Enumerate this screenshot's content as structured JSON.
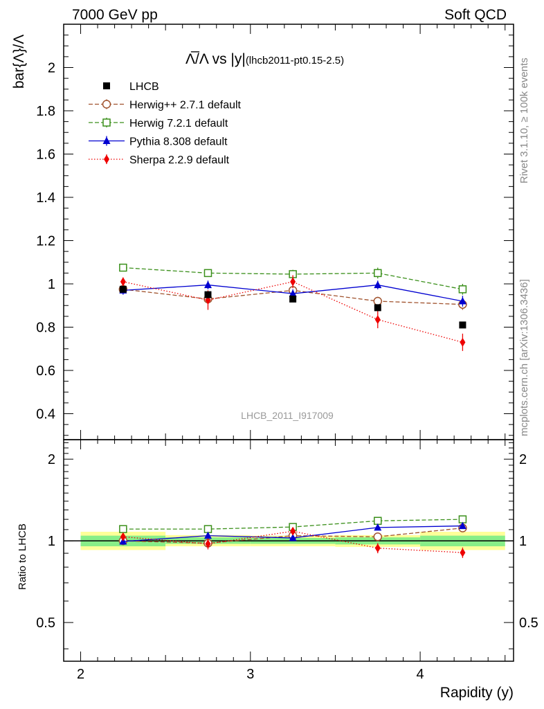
{
  "header": {
    "left": "7000 GeV pp",
    "right": "Soft QCD"
  },
  "side_labels": {
    "rivet": "Rivet 3.1.10, ≥ 100k events",
    "mcplots": "mcplots.cern.ch [arXiv:1306.3436]"
  },
  "watermark": "LHCB_2011_I917009",
  "chart_data": [
    {
      "type": "line",
      "title_symbol": "Λ̅/Λ vs |y|",
      "title_suffix": "(lhcb2011-pt0.15-2.5)",
      "ylabel": "bar{Λ}/Λ",
      "xlabel": "",
      "xlim": [
        1.9,
        4.55
      ],
      "ylim": [
        0.28,
        2.2
      ],
      "yticks": [
        0.4,
        0.6,
        0.8,
        1.0,
        1.2,
        1.4,
        1.6,
        1.8,
        2.0
      ],
      "ytick_labels": [
        "0.4",
        "0.6",
        "0.8",
        "1",
        "1.2",
        "1.4",
        "1.6",
        "1.8",
        "2"
      ],
      "legend_position": "top-left",
      "x": [
        2.25,
        2.75,
        3.25,
        3.75,
        4.25
      ],
      "series": [
        {
          "name": "LHCB",
          "style": "data",
          "color": "#000000",
          "values": [
            0.975,
            0.95,
            0.93,
            0.89,
            0.81
          ],
          "errors": [
            0.005,
            0.005,
            0.005,
            0.005,
            0.005
          ]
        },
        {
          "name": "Herwig++ 2.7.1 default",
          "style": "open-circle",
          "color": "#a0522d",
          "dash": "6,3",
          "values": [
            0.975,
            0.93,
            0.97,
            0.92,
            0.905
          ],
          "errors": [
            0.02,
            0.02,
            0.02,
            0.02,
            0.025
          ]
        },
        {
          "name": "Herwig 7.2.1 default",
          "style": "open-square",
          "color": "#3a8f1a",
          "dash": "6,3",
          "values": [
            1.075,
            1.05,
            1.045,
            1.05,
            0.975
          ],
          "errors": [
            0.015,
            0.015,
            0.02,
            0.025,
            0.025
          ]
        },
        {
          "name": "Pythia 8.308 default",
          "style": "filled-triangle",
          "color": "#0000d0",
          "dash": "",
          "values": [
            0.97,
            0.995,
            0.955,
            0.995,
            0.92
          ],
          "errors": [
            0.02,
            0.02,
            0.02,
            0.02,
            0.025
          ]
        },
        {
          "name": "Sherpa 2.2.9 default",
          "style": "filled-diamond",
          "color": "#ee0000",
          "dash": "1.5,2.5",
          "values": [
            1.01,
            0.925,
            1.01,
            0.835,
            0.73
          ],
          "errors": [
            0.02,
            0.045,
            0.03,
            0.04,
            0.04
          ]
        }
      ]
    },
    {
      "type": "line",
      "title": "",
      "ylabel": "Ratio to LHCB",
      "xlabel": "Rapidity (y)",
      "xlim": [
        1.9,
        4.55
      ],
      "ylim": [
        0.36,
        2.36
      ],
      "log_scale_y": true,
      "yticks": [
        0.5,
        1,
        2
      ],
      "ytick_labels": [
        "0.5",
        "1",
        "2"
      ],
      "xticks": [
        2,
        3,
        4
      ],
      "xtick_labels": [
        "2",
        "3",
        "4"
      ],
      "x": [
        2.25,
        2.75,
        3.25,
        3.75,
        4.25
      ],
      "bands": {
        "bins": [
          [
            2.0,
            2.5
          ],
          [
            2.5,
            3.0
          ],
          [
            3.0,
            3.5
          ],
          [
            3.5,
            4.0
          ],
          [
            4.0,
            4.5
          ]
        ],
        "yellow": [
          [
            0.925,
            1.08
          ],
          [
            0.955,
            1.05
          ],
          [
            0.955,
            1.045
          ],
          [
            0.95,
            1.05
          ],
          [
            0.925,
            1.08
          ]
        ],
        "green": [
          [
            0.955,
            1.045
          ],
          [
            0.975,
            1.03
          ],
          [
            0.975,
            1.025
          ],
          [
            0.97,
            1.03
          ],
          [
            0.955,
            1.045
          ]
        ]
      },
      "series": [
        {
          "name": "Herwig++ 2.7.1 default",
          "values": [
            1.0,
            0.98,
            1.045,
            1.035,
            1.115
          ],
          "errors": [
            0.02,
            0.02,
            0.02,
            0.02,
            0.025
          ]
        },
        {
          "name": "Herwig 7.2.1 default",
          "values": [
            1.105,
            1.105,
            1.125,
            1.185,
            1.2
          ],
          "errors": [
            0.015,
            0.015,
            0.02,
            0.025,
            0.025
          ]
        },
        {
          "name": "Pythia 8.308 default",
          "values": [
            0.995,
            1.045,
            1.025,
            1.12,
            1.135
          ],
          "errors": [
            0.02,
            0.02,
            0.02,
            0.02,
            0.025
          ]
        },
        {
          "name": "Sherpa 2.2.9 default",
          "values": [
            1.035,
            0.975,
            1.085,
            0.94,
            0.905
          ],
          "errors": [
            0.02,
            0.045,
            0.03,
            0.04,
            0.04
          ]
        }
      ]
    }
  ]
}
